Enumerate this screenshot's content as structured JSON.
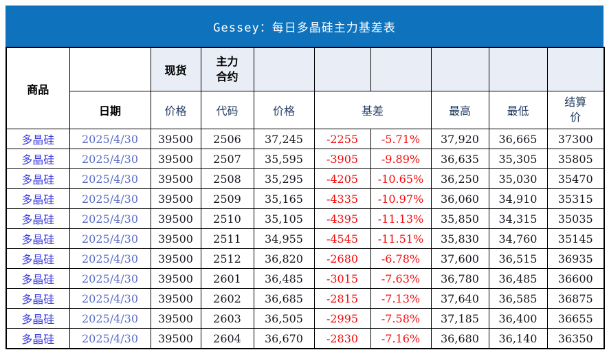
{
  "title": "Gessey：每日多晶硅主力基差表",
  "table": {
    "header": {
      "commodity": "商品",
      "date": "日期",
      "spot_group": "现货",
      "main_contract_group": "主力合约",
      "spot_price": "价格",
      "contract_code": "代码",
      "contract_price": "价格",
      "basis": "基差",
      "high": "最高",
      "low": "最低",
      "settlement": "结算价"
    },
    "columns": [
      "commodity",
      "date",
      "spot_price",
      "contract_code",
      "contract_price",
      "basis_value",
      "basis_pct",
      "high",
      "low",
      "settlement"
    ],
    "rows": [
      [
        "多晶硅",
        "2025/4/30",
        "39500",
        "2506",
        "37,245",
        "-2255",
        "-5.71%",
        "37,920",
        "36,665",
        "37300"
      ],
      [
        "多晶硅",
        "2025/4/30",
        "39500",
        "2507",
        "35,595",
        "-3905",
        "-9.89%",
        "36,635",
        "35,305",
        "35805"
      ],
      [
        "多晶硅",
        "2025/4/30",
        "39500",
        "2508",
        "35,295",
        "-4205",
        "-10.65%",
        "36,250",
        "35,030",
        "35470"
      ],
      [
        "多晶硅",
        "2025/4/30",
        "39500",
        "2509",
        "35,165",
        "-4335",
        "-10.97%",
        "36,060",
        "34,910",
        "35315"
      ],
      [
        "多晶硅",
        "2025/4/30",
        "39500",
        "2510",
        "35,105",
        "-4395",
        "-11.13%",
        "35,850",
        "34,315",
        "35035"
      ],
      [
        "多晶硅",
        "2025/4/30",
        "39500",
        "2511",
        "34,955",
        "-4545",
        "-11.51%",
        "35,830",
        "34,760",
        "35145"
      ],
      [
        "多晶硅",
        "2025/4/30",
        "39500",
        "2512",
        "36,820",
        "-2680",
        "-6.78%",
        "37,600",
        "36,515",
        "36935"
      ],
      [
        "多晶硅",
        "2025/4/30",
        "39500",
        "2601",
        "36,485",
        "-3015",
        "-7.63%",
        "36,780",
        "36,485",
        "36600"
      ],
      [
        "多晶硅",
        "2025/4/30",
        "39500",
        "2602",
        "36,685",
        "-2815",
        "-7.13%",
        "37,640",
        "36,585",
        "36875"
      ],
      [
        "多晶硅",
        "2025/4/30",
        "39500",
        "2603",
        "36,505",
        "-2995",
        "-7.58%",
        "37,185",
        "36,400",
        "36655"
      ],
      [
        "多晶硅",
        "2025/4/30",
        "39500",
        "2604",
        "36,670",
        "-2830",
        "-7.16%",
        "36,680",
        "36,140",
        "36350"
      ]
    ]
  },
  "colors": {
    "title_bar": "#0e72bd",
    "title_text": "#ffffff",
    "header_group_fill": "#e9edf6",
    "commodity_text": "#3d3ddd",
    "date_text": "#5b6cc4",
    "negative_text": "#f40b0c",
    "header_label_text": "#1f3a5f",
    "number_text": "#15181f",
    "grid_border": "#000000"
  }
}
